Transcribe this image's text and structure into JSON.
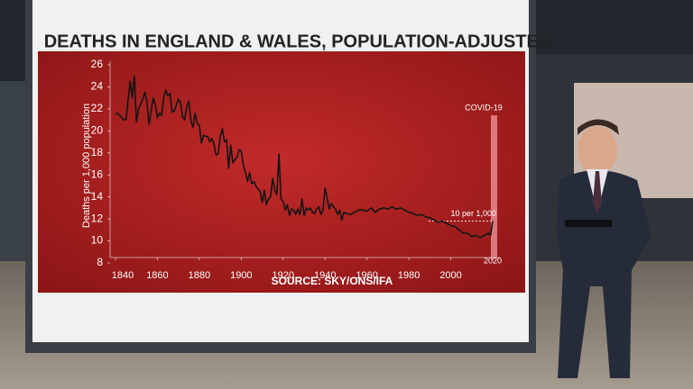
{
  "chart_data": {
    "type": "line",
    "title": "DEATHS IN ENGLAND & WALES, POPULATION-ADJUSTED",
    "source": "SOURCE: SKY/ONS/IFA",
    "y_label": "Deaths per 1,000 population",
    "annotations": [
      "COVID-19",
      "10 per 1,000"
    ],
    "color": "#141414",
    "x": [
      1840,
      1841,
      1842,
      1843,
      1844,
      1845,
      1846,
      1847,
      1848,
      1849,
      1850,
      1851,
      1852,
      1853,
      1854,
      1855,
      1856,
      1857,
      1858,
      1859,
      1860,
      1861,
      1862,
      1863,
      1864,
      1865,
      1866,
      1867,
      1868,
      1869,
      1870,
      1871,
      1872,
      1873,
      1874,
      1875,
      1876,
      1877,
      1878,
      1879,
      1880,
      1881,
      1882,
      1883,
      1884,
      1885,
      1886,
      1887,
      1888,
      1889,
      1890,
      1891,
      1892,
      1893,
      1894,
      1895,
      1896,
      1897,
      1898,
      1899,
      1900,
      1901,
      1902,
      1903,
      1904,
      1905,
      1906,
      1907,
      1908,
      1909,
      1910,
      1911,
      1912,
      1913,
      1914,
      1915,
      1916,
      1917,
      1918,
      1919,
      1920,
      1921,
      1922,
      1923,
      1924,
      1925,
      1926,
      1927,
      1928,
      1929,
      1930,
      1931,
      1932,
      1933,
      1934,
      1935,
      1936,
      1937,
      1938,
      1939,
      1940,
      1941,
      1942,
      1943,
      1944,
      1945,
      1946,
      1947,
      1948,
      1949,
      1950,
      1952,
      1954,
      1956,
      1958,
      1960,
      1962,
      1964,
      1966,
      1968,
      1970,
      1972,
      1974,
      1976,
      1978,
      1980,
      1982,
      1984,
      1986,
      1988,
      1990,
      1992,
      1994,
      1996,
      1998,
      2000,
      2002,
      2004,
      2006,
      2008,
      2010,
      2012,
      2014,
      2016,
      2018,
      2019,
      2020
    ],
    "values": [
      21.5,
      21.6,
      21.4,
      21.2,
      21.0,
      21.0,
      22.8,
      24.5,
      23.0,
      25.0,
      20.8,
      22.0,
      22.4,
      22.9,
      23.5,
      22.6,
      20.6,
      21.8,
      23.0,
      22.4,
      21.2,
      21.6,
      21.4,
      23.0,
      23.7,
      23.2,
      23.4,
      21.7,
      21.8,
      22.3,
      22.9,
      22.6,
      21.3,
      21.0,
      22.2,
      22.7,
      20.9,
      20.3,
      21.6,
      20.7,
      20.5,
      18.9,
      19.6,
      19.5,
      19.5,
      19.0,
      19.3,
      18.8,
      17.8,
      17.9,
      19.5,
      20.2,
      19.0,
      19.2,
      16.6,
      18.7,
      17.1,
      17.4,
      17.6,
      18.3,
      18.2,
      16.9,
      16.2,
      15.4,
      16.2,
      15.2,
      15.4,
      15.0,
      14.7,
      14.5,
      13.5,
      14.6,
      13.3,
      13.8,
      14.0,
      15.7,
      14.6,
      14.2,
      17.9,
      13.8,
      13.6,
      12.8,
      13.3,
      12.3,
      12.9,
      12.8,
      12.4,
      12.9,
      12.4,
      13.8,
      12.3,
      13.0,
      12.8,
      13.0,
      12.6,
      12.5,
      12.9,
      13.1,
      12.4,
      12.8,
      14.8,
      13.9,
      12.9,
      13.4,
      13.1,
      12.9,
      12.4,
      12.8,
      11.9,
      12.6,
      12.5,
      12.4,
      12.6,
      12.8,
      12.8,
      12.7,
      13.0,
      12.6,
      12.9,
      13.0,
      12.9,
      13.1,
      12.9,
      13.0,
      12.8,
      12.6,
      12.5,
      12.3,
      12.4,
      12.2,
      12.1,
      11.9,
      11.7,
      11.8,
      11.6,
      11.4,
      11.3,
      11.0,
      10.7,
      10.7,
      10.4,
      10.5,
      10.3,
      10.5,
      10.7,
      10.5,
      11.8
    ],
    "xlim": [
      1840,
      2020
    ],
    "xticks": [
      1840,
      1860,
      1880,
      1900,
      1920,
      1940,
      1960,
      1980,
      2000,
      2020
    ],
    "ylim": [
      8,
      26
    ],
    "yticks": [
      8,
      10,
      12,
      14,
      16,
      18,
      20,
      22,
      24,
      26
    ]
  }
}
